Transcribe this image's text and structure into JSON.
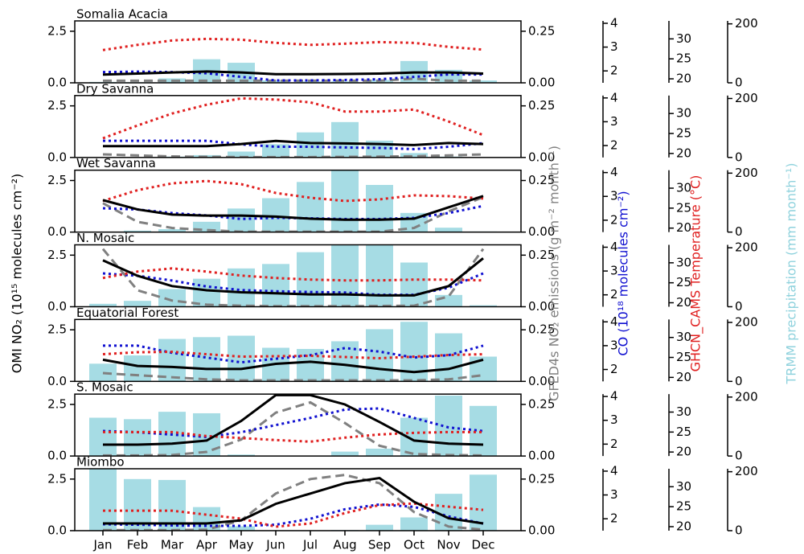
{
  "chart_data": {
    "type": "combo",
    "categories": [
      "Jan",
      "Feb",
      "Mar",
      "Apr",
      "May",
      "Jun",
      "Jul",
      "Aug",
      "Sep",
      "Oct",
      "Nov",
      "Dec"
    ],
    "ylabel": "OMI NO₂ (10¹⁵ molecules cm⁻²)",
    "y2label": "GFED4s NO₂ emissions (g m⁻² month⁻¹)",
    "y3label": "CO (10¹⁸ molecules cm⁻²)",
    "y4label": "GHCN_CAMS Temperature (°C)",
    "y5label": "TRMM precipitation (mm month⁻¹)",
    "ylim": [
      0,
      3.0
    ],
    "yticks": [
      {
        "value": 0,
        "label": "0.0"
      },
      {
        "value": 2.5,
        "label": "2.5"
      }
    ],
    "y2lim": [
      0,
      0.3
    ],
    "y2ticks": [
      {
        "value": 0,
        "label": "0.00"
      },
      {
        "value": 0.25,
        "label": "0.25"
      }
    ],
    "y3lim": [
      1.5,
      4.1
    ],
    "y3ticks": [
      2,
      3,
      4
    ],
    "y4lim": [
      19,
      34.5
    ],
    "y4ticks": [
      20,
      25,
      30
    ],
    "y5lim": [
      0,
      210
    ],
    "y5ticks": [
      0,
      200
    ],
    "panels": [
      {
        "title": "Somalia Acacia",
        "series": [
          {
            "axis": "y5",
            "style": "bar",
            "color": "#a6dce4",
            "values": [
              3,
              2,
              15,
              80,
              68,
              8,
              5,
              5,
              10,
              74,
              44,
              8
            ]
          },
          {
            "axis": "y2",
            "style": "dashed",
            "color": "#808080",
            "values": [
              0.01,
              0.01,
              0.01,
              0.01,
              0.01,
              0.01,
              0.01,
              0.01,
              0.01,
              0.02,
              0.01,
              0.01
            ]
          },
          {
            "axis": "y3",
            "style": "dotted",
            "color": "#1010d0",
            "values": [
              1.95,
              1.97,
              1.95,
              1.9,
              1.75,
              1.6,
              1.6,
              1.62,
              1.65,
              1.75,
              1.85,
              1.85
            ]
          },
          {
            "axis": "y4",
            "style": "dotted",
            "color": "#e02020",
            "values": [
              27.2,
              28.5,
              29.6,
              30,
              29.8,
              29,
              28.5,
              28.8,
              29.2,
              29,
              28,
              27.3
            ]
          },
          {
            "axis": "y",
            "style": "solid",
            "color": "#000000",
            "values": [
              0.4,
              0.45,
              0.5,
              0.55,
              0.5,
              0.42,
              0.42,
              0.43,
              0.45,
              0.5,
              0.5,
              0.45
            ]
          }
        ]
      },
      {
        "title": "Dry Savanna",
        "series": [
          {
            "axis": "y5",
            "style": "bar",
            "color": "#a6dce4",
            "values": [
              0,
              0,
              3,
              8,
              20,
              45,
              85,
              120,
              57,
              15,
              3,
              0
            ]
          },
          {
            "axis": "y2",
            "style": "dashed",
            "color": "#808080",
            "values": [
              0.015,
              0.01,
              0.005,
              0.003,
              0.002,
              0.002,
              0.002,
              0.003,
              0.004,
              0.006,
              0.01,
              0.015
            ]
          },
          {
            "axis": "y3",
            "style": "dotted",
            "color": "#1010d0",
            "values": [
              2.2,
              2.2,
              2.2,
              2.2,
              2.05,
              1.95,
              1.95,
              1.92,
              1.9,
              1.85,
              1.95,
              2.1
            ]
          },
          {
            "axis": "y4",
            "style": "dotted",
            "color": "#e02020",
            "values": [
              23.8,
              27,
              30,
              32.2,
              33.8,
              33.5,
              32.8,
              30.5,
              30.5,
              31,
              28,
              24.6
            ]
          },
          {
            "axis": "y",
            "style": "solid",
            "color": "#000000",
            "values": [
              0.55,
              0.55,
              0.55,
              0.55,
              0.65,
              0.8,
              0.7,
              0.68,
              0.65,
              0.6,
              0.7,
              0.65
            ]
          }
        ]
      },
      {
        "title": "Wet Savanna",
        "series": [
          {
            "axis": "y5",
            "style": "bar",
            "color": "#a6dce4",
            "values": [
              0,
              5,
              10,
              35,
              80,
              115,
              170,
              225,
              160,
              65,
              15,
              2
            ]
          },
          {
            "axis": "y2",
            "style": "dashed",
            "color": "#808080",
            "values": [
              0.14,
              0.05,
              0.02,
              0.01,
              0.002,
              0.002,
              0.002,
              0.002,
              0.002,
              0.02,
              0.1,
              0.17
            ]
          },
          {
            "axis": "y3",
            "style": "dotted",
            "color": "#1010d0",
            "values": [
              2.5,
              2.45,
              2.3,
              2.2,
              2.05,
              2.1,
              2.08,
              2.05,
              2.05,
              2.1,
              2.3,
              2.6
            ]
          },
          {
            "axis": "y4",
            "style": "dotted",
            "color": "#e02020",
            "values": [
              26.8,
              29.5,
              31.2,
              31.8,
              31,
              28.8,
              27.6,
              26.8,
              27.2,
              28.2,
              28,
              27.4
            ]
          },
          {
            "axis": "y",
            "style": "solid",
            "color": "#000000",
            "values": [
              1.55,
              1.1,
              0.85,
              0.8,
              0.8,
              0.75,
              0.65,
              0.6,
              0.6,
              0.65,
              1.2,
              1.75
            ]
          }
        ]
      },
      {
        "title": "N. Mosaic",
        "series": [
          {
            "axis": "y5",
            "style": "bar",
            "color": "#a6dce4",
            "values": [
              10,
              20,
              60,
              95,
              130,
              145,
              185,
              220,
              220,
              150,
              40,
              5
            ]
          },
          {
            "axis": "y2",
            "style": "dashed",
            "color": "#808080",
            "values": [
              0.28,
              0.08,
              0.03,
              0.01,
              0.005,
              0.003,
              0.003,
              0.003,
              0.004,
              0.005,
              0.05,
              0.28
            ]
          },
          {
            "axis": "y3",
            "style": "dotted",
            "color": "#1010d0",
            "values": [
              2.9,
              2.8,
              2.6,
              2.35,
              2.2,
              2.15,
              2.12,
              2.1,
              2.0,
              2.0,
              2.3,
              2.9
            ]
          },
          {
            "axis": "y4",
            "style": "dotted",
            "color": "#e02020",
            "values": [
              26.2,
              27.8,
              28.6,
              27.8,
              26.8,
              26.2,
              25.8,
              25.6,
              25.6,
              25.8,
              25.8,
              25.6
            ]
          },
          {
            "axis": "y",
            "style": "solid",
            "color": "#000000",
            "values": [
              2.25,
              1.5,
              1.0,
              0.8,
              0.7,
              0.65,
              0.6,
              0.6,
              0.55,
              0.55,
              1.0,
              2.35
            ]
          }
        ]
      },
      {
        "title": "Equatorial Forest",
        "series": [
          {
            "axis": "y5",
            "style": "bar",
            "color": "#a6dce4",
            "values": [
              60,
              88,
              144,
              150,
              155,
              114,
              110,
              136,
              177,
              202,
              163,
              84
            ]
          },
          {
            "axis": "y2",
            "style": "dashed",
            "color": "#808080",
            "values": [
              0.04,
              0.03,
              0.02,
              0.01,
              0.005,
              0.005,
              0.005,
              0.005,
              0.005,
              0.005,
              0.01,
              0.03
            ]
          },
          {
            "axis": "y3",
            "style": "dotted",
            "color": "#1010d0",
            "values": [
              3.0,
              3.0,
              2.7,
              2.5,
              2.3,
              2.45,
              2.6,
              2.9,
              2.75,
              2.5,
              2.6,
              3.0
            ]
          },
          {
            "axis": "y4",
            "style": "dotted",
            "color": "#e02020",
            "values": [
              25.8,
              26.3,
              26.4,
              25.8,
              25.2,
              25.3,
              25.4,
              25.1,
              24.8,
              25.2,
              25.6,
              25.8
            ]
          },
          {
            "axis": "y",
            "style": "solid",
            "color": "#000000",
            "values": [
              1.05,
              0.75,
              0.7,
              0.6,
              0.6,
              0.85,
              0.95,
              0.8,
              0.6,
              0.45,
              0.6,
              1.05
            ]
          }
        ]
      },
      {
        "title": "S. Mosaic",
        "series": [
          {
            "axis": "y5",
            "style": "bar",
            "color": "#a6dce4",
            "values": [
              130,
              125,
              150,
              145,
              5,
              1,
              1,
              15,
              25,
              130,
              205,
              170
            ]
          },
          {
            "axis": "y2",
            "style": "dashed",
            "color": "#808080",
            "values": [
              0.003,
              0.003,
              0.005,
              0.02,
              0.08,
              0.21,
              0.26,
              0.16,
              0.05,
              0.01,
              0.005,
              0.003
            ]
          },
          {
            "axis": "y3",
            "style": "dotted",
            "color": "#1010d0",
            "values": [
              2.55,
              2.5,
              2.4,
              2.3,
              2.5,
              2.8,
              3.1,
              3.45,
              3.5,
              3.1,
              2.7,
              2.55
            ]
          },
          {
            "axis": "y4",
            "style": "dotted",
            "color": "#e02020",
            "values": [
              25,
              25,
              25,
              24,
              23.5,
              23,
              22.6,
              23.6,
              24.4,
              24.8,
              25,
              25
            ]
          },
          {
            "axis": "y",
            "style": "solid",
            "color": "#000000",
            "values": [
              0.55,
              0.55,
              0.6,
              0.75,
              1.7,
              2.95,
              2.95,
              2.5,
              1.65,
              0.75,
              0.6,
              0.55
            ]
          }
        ]
      },
      {
        "title": "Miombo",
        "series": [
          {
            "axis": "y5",
            "style": "bar",
            "color": "#a6dce4",
            "values": [
              220,
              175,
              172,
              80,
              15,
              1,
              1,
              2,
              20,
              45,
              125,
              190
            ]
          },
          {
            "axis": "y2",
            "style": "dashed",
            "color": "#808080",
            "values": [
              0.003,
              0.003,
              0.003,
              0.005,
              0.05,
              0.18,
              0.25,
              0.27,
              0.23,
              0.09,
              0.02,
              0.005
            ]
          },
          {
            "axis": "y3",
            "style": "dotted",
            "color": "#1010d0",
            "values": [
              1.77,
              1.75,
              1.72,
              1.7,
              1.7,
              1.75,
              2.0,
              2.4,
              2.6,
              2.5,
              2.1,
              1.8
            ]
          },
          {
            "axis": "y4",
            "style": "dotted",
            "color": "#e02020",
            "values": [
              24,
              24,
              24,
              23,
              22,
              20,
              20.8,
              23.4,
              25.4,
              25.8,
              25,
              24.2
            ]
          },
          {
            "axis": "y",
            "style": "solid",
            "color": "#000000",
            "values": [
              0.35,
              0.35,
              0.35,
              0.35,
              0.5,
              1.3,
              1.8,
              2.3,
              2.55,
              1.4,
              0.6,
              0.35
            ]
          }
        ]
      }
    ]
  }
}
